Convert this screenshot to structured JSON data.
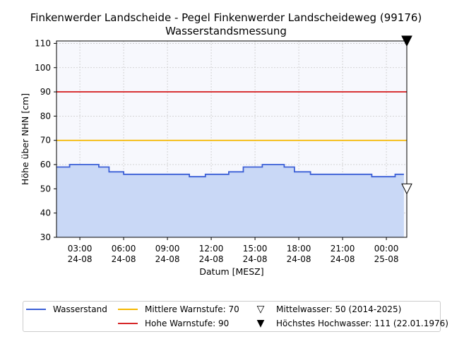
{
  "title_line1": "Finkenwerder Landscheide - Pegel Finkenwerder Landscheideweg (99176)",
  "title_line2": "Wasserstandsmessung",
  "chart_data": {
    "type": "line",
    "xlabel": "Datum [MESZ]",
    "ylabel": "Höhe über NHN [cm]",
    "ylim": [
      30,
      111
    ],
    "xlim_hours": [
      1.4,
      25.4
    ],
    "grid": true,
    "yticks": [
      30,
      40,
      50,
      60,
      70,
      80,
      90,
      100,
      110
    ],
    "xticks": [
      {
        "h": 3,
        "label1": "03:00",
        "label2": "24-08"
      },
      {
        "h": 6,
        "label1": "06:00",
        "label2": "24-08"
      },
      {
        "h": 9,
        "label1": "09:00",
        "label2": "24-08"
      },
      {
        "h": 12,
        "label1": "12:00",
        "label2": "24-08"
      },
      {
        "h": 15,
        "label1": "15:00",
        "label2": "24-08"
      },
      {
        "h": 18,
        "label1": "18:00",
        "label2": "24-08"
      },
      {
        "h": 21,
        "label1": "21:00",
        "label2": "24-08"
      },
      {
        "h": 24,
        "label1": "00:00",
        "label2": "25-08"
      }
    ],
    "series": [
      {
        "name": "Wasserstand",
        "color": "#3b5fd6",
        "fill": "#c9d8f6",
        "steps": [
          {
            "from": 1.4,
            "to": 2.3,
            "y": 59
          },
          {
            "from": 2.3,
            "to": 4.3,
            "y": 60
          },
          {
            "from": 4.3,
            "to": 5.0,
            "y": 59
          },
          {
            "from": 5.0,
            "to": 6.0,
            "y": 57
          },
          {
            "from": 6.0,
            "to": 10.5,
            "y": 56
          },
          {
            "from": 10.5,
            "to": 11.6,
            "y": 55
          },
          {
            "from": 11.6,
            "to": 13.2,
            "y": 56
          },
          {
            "from": 13.2,
            "to": 14.2,
            "y": 57
          },
          {
            "from": 14.2,
            "to": 15.5,
            "y": 59
          },
          {
            "from": 15.5,
            "to": 17.0,
            "y": 60
          },
          {
            "from": 17.0,
            "to": 17.7,
            "y": 59
          },
          {
            "from": 17.7,
            "to": 18.8,
            "y": 57
          },
          {
            "from": 18.8,
            "to": 23.0,
            "y": 56
          },
          {
            "from": 23.0,
            "to": 24.6,
            "y": 55
          },
          {
            "from": 24.6,
            "to": 25.2,
            "y": 56
          }
        ]
      }
    ],
    "thresholds": [
      {
        "name": "Mittlere Warnstufe: 70",
        "value": 70,
        "color": "#f5b800"
      },
      {
        "name": "Hohe Warnstufe: 90",
        "value": 90,
        "color": "#d62728"
      }
    ],
    "markers": [
      {
        "name": "Mittelwasser: 50 (2014-2025)",
        "value": 50,
        "filled": false
      },
      {
        "name": "Höchstes Hochwasser: 111 (22.01.1976)",
        "value": 111,
        "filled": true
      }
    ]
  },
  "legend": {
    "wasserstand": "Wasserstand",
    "mittlere": "Mittlere Warnstufe: 70",
    "hohe": "Hohe Warnstufe: 90",
    "mittelwasser": "Mittelwasser: 50 (2014-2025)",
    "hochwasser": "Höchstes Hochwasser: 111 (22.01.1976)",
    "open_triangle": "▽",
    "filled_triangle": "▼"
  }
}
